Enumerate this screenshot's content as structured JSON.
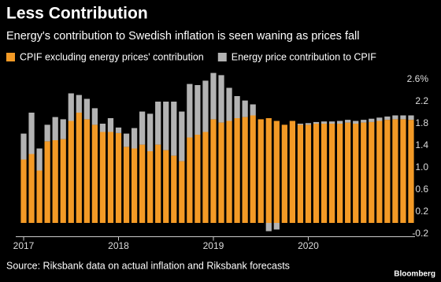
{
  "chart_data": {
    "type": "stacked-bar",
    "title": "Less Contribution",
    "subtitle": "Energy's contribution to Swedish inflation is seen waning as prices fall",
    "source": "Source: Riksbank data on actual inflation and Riksbank forecasts",
    "logo": "Bloomberg",
    "categories": [
      "2017",
      null,
      null,
      null,
      null,
      null,
      null,
      null,
      null,
      null,
      null,
      null,
      "2018",
      null,
      null,
      null,
      null,
      null,
      null,
      null,
      null,
      null,
      null,
      null,
      "2019",
      null,
      null,
      null,
      null,
      null,
      null,
      null,
      null,
      null,
      null,
      null,
      "2020",
      null,
      null,
      null,
      null,
      null,
      null,
      null,
      null,
      null,
      null,
      null,
      null,
      null
    ],
    "series": [
      {
        "name": "CPIF excluding energy prices' contribution",
        "color": "#f39a26",
        "values": [
          1.15,
          1.25,
          0.95,
          1.48,
          1.5,
          1.52,
          1.85,
          2.0,
          1.88,
          1.78,
          1.65,
          1.65,
          1.63,
          1.38,
          1.35,
          1.42,
          1.3,
          1.42,
          1.32,
          1.22,
          1.12,
          1.55,
          1.6,
          1.65,
          1.88,
          1.82,
          1.85,
          1.9,
          1.92,
          1.95,
          1.88,
          1.9,
          1.85,
          1.78,
          1.85,
          1.78,
          1.78,
          1.8,
          1.8,
          1.8,
          1.8,
          1.82,
          1.8,
          1.82,
          1.83,
          1.85,
          1.87,
          1.88,
          1.88,
          1.87
        ]
      },
      {
        "name": "Energy price contribution to CPIF",
        "color": "#b3b3b3",
        "values": [
          0.47,
          0.75,
          0.4,
          0.3,
          0.42,
          0.36,
          0.5,
          0.32,
          0.37,
          0.3,
          0.15,
          0.25,
          0.1,
          0.24,
          0.37,
          0.6,
          0.68,
          0.78,
          0.88,
          0.98,
          0.9,
          0.97,
          0.9,
          0.93,
          0.84,
          0.86,
          0.6,
          0.4,
          0.3,
          0.2,
          0.0,
          -0.15,
          -0.12,
          0.0,
          0.0,
          0.02,
          0.03,
          0.03,
          0.04,
          0.04,
          0.05,
          0.05,
          0.05,
          0.05,
          0.06,
          0.06,
          0.06,
          0.07,
          0.07,
          0.08
        ]
      }
    ],
    "ylim": [
      -0.25,
      2.75
    ],
    "yticks": [
      -0.2,
      0.2,
      0.6,
      {
        "value": 1,
        "label": "1.0"
      },
      1.4,
      1.8,
      2.2,
      {
        "value": 2.6,
        "label": "2.6%"
      }
    ],
    "grid": false
  }
}
